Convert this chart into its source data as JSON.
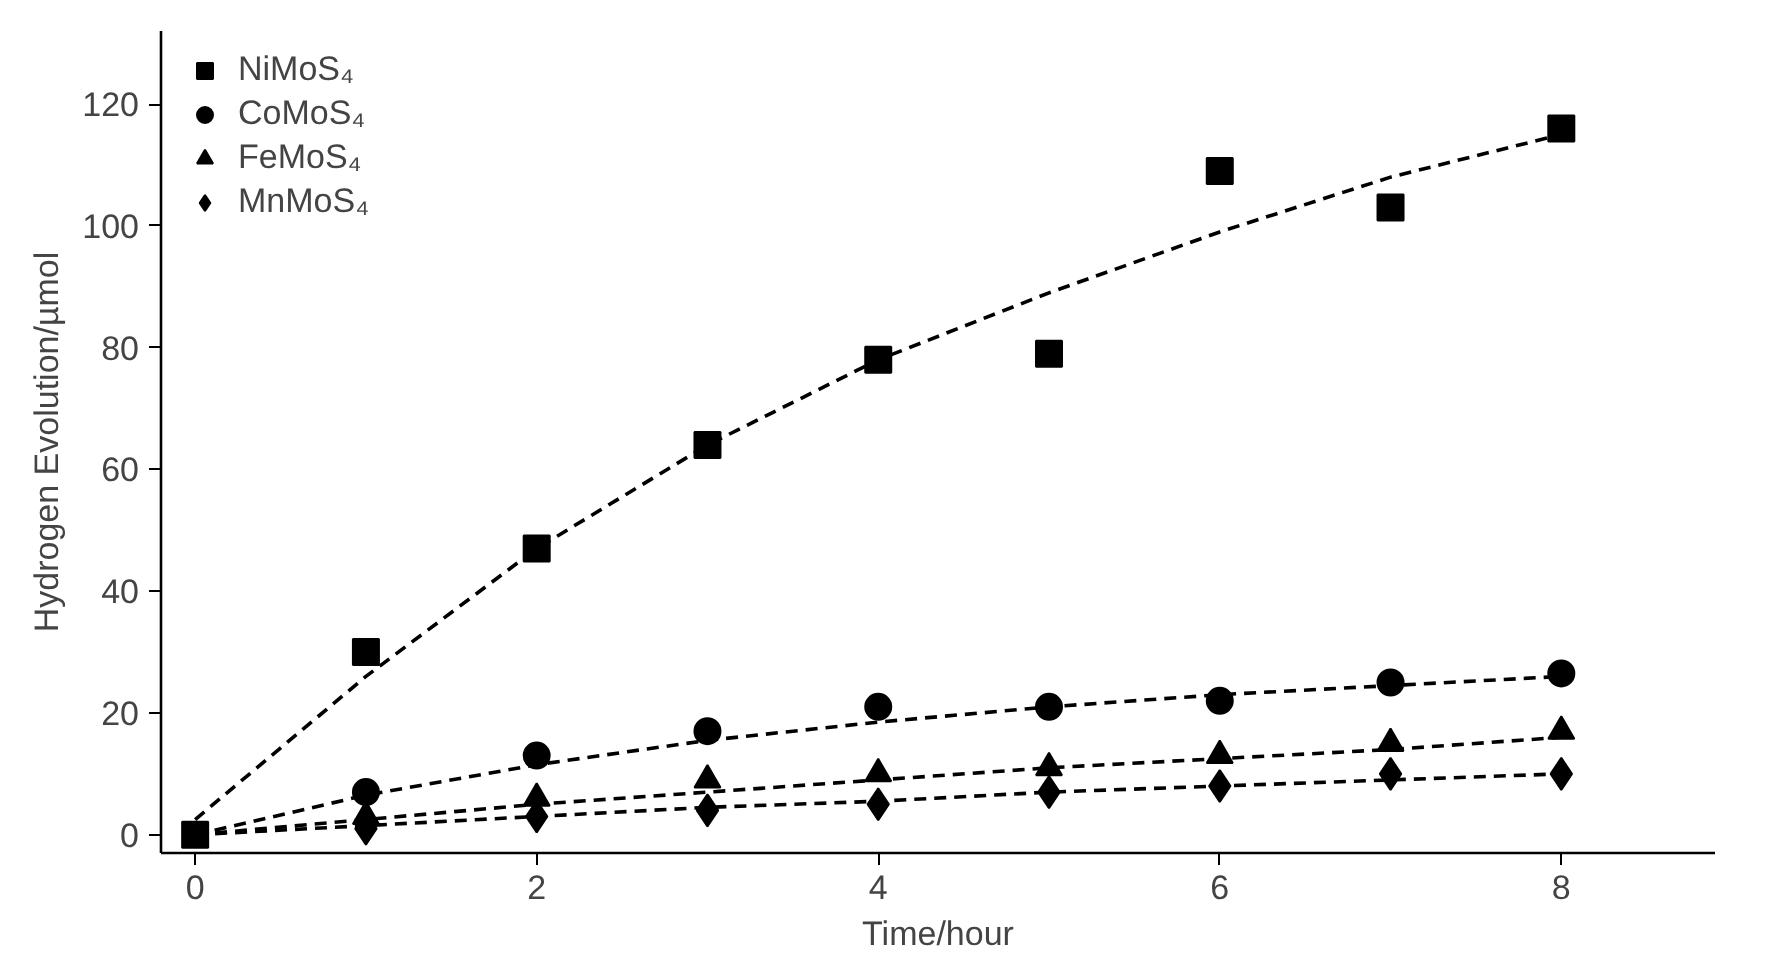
{
  "chart_data": {
    "type": "scatter",
    "xlabel": "Time/hour",
    "ylabel": "Hydrogen Evolution/µmol",
    "x": [
      0,
      1,
      2,
      3,
      4,
      5,
      6,
      7,
      8
    ],
    "series": [
      {
        "name": "NiMoS₄",
        "color": "#000000",
        "marker": "square",
        "values": [
          0,
          30,
          47,
          64,
          78,
          79,
          109,
          103,
          116
        ]
      },
      {
        "name": "CoMoS₄",
        "color": "#000000",
        "marker": "circle",
        "values": [
          null,
          7,
          13,
          17,
          21,
          21,
          22,
          25,
          26.5
        ]
      },
      {
        "name": "FeMoS₄",
        "color": "#000000",
        "marker": "triangle",
        "values": [
          null,
          3,
          6,
          9,
          10,
          11,
          13,
          15,
          17
        ]
      },
      {
        "name": "MnMoS₄",
        "color": "#000000",
        "marker": "diamond",
        "values": [
          null,
          1,
          3,
          4,
          5,
          7,
          8,
          10,
          10
        ]
      },
      {
        "type": "line",
        "color": "#000000",
        "line_style": "dashed",
        "marker": "none",
        "values": [
          2.5,
          26,
          47,
          64,
          78,
          89,
          99,
          108,
          115
        ]
      },
      {
        "type": "line",
        "color": "#000000",
        "line_style": "dashed",
        "marker": "none",
        "values": [
          0,
          6.5,
          11.5,
          15.5,
          18.5,
          21,
          23,
          24.5,
          26
        ]
      },
      {
        "type": "line",
        "color": "#000000",
        "line_style": "dashed",
        "marker": "none",
        "values": [
          0,
          2.5,
          5,
          7,
          9,
          11,
          12.5,
          14,
          16
        ]
      },
      {
        "type": "line",
        "color": "#000000",
        "line_style": "dashed",
        "marker": "none",
        "values": [
          0,
          1.5,
          3,
          4.5,
          5.5,
          7,
          8,
          9,
          10
        ]
      }
    ],
    "xlim": [
      -0.2,
      8.9
    ],
    "ylim": [
      -3,
      132
    ],
    "xticks": [
      0,
      2,
      4,
      6,
      8
    ],
    "yticks": [
      0,
      20,
      40,
      60,
      80,
      100,
      120
    ],
    "grid": false,
    "legend": "top left"
  }
}
